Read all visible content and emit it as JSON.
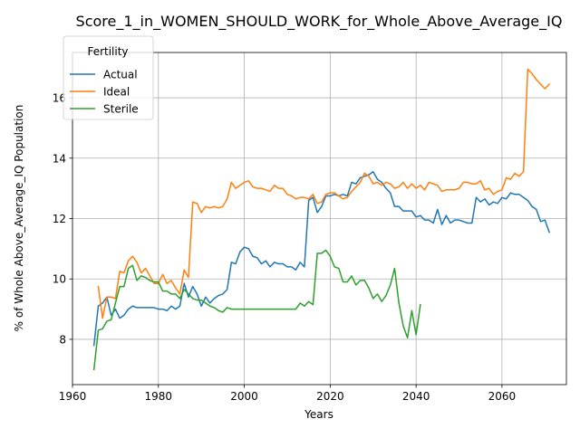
{
  "chart_data": {
    "type": "line",
    "title": "Score_1_in_WOMEN_SHOULD_WORK_for_Whole_Above_Average_IQ",
    "xlabel": "Years",
    "ylabel": "% of Whole Above_Average_IQ Population",
    "xlim": [
      1960,
      2075
    ],
    "ylim": [
      6.5,
      17.5
    ],
    "x_ticks": [
      1960,
      1980,
      2000,
      2020,
      2040,
      2060
    ],
    "y_ticks": [
      8,
      10,
      12,
      14,
      16
    ],
    "grid": true,
    "legend": {
      "title": "Fertility",
      "position": "top-left"
    },
    "series": [
      {
        "name": "Actual",
        "color": "#1f77b4",
        "points": [
          [
            1965,
            7.8
          ],
          [
            1966,
            9.1
          ],
          [
            1967,
            9.2
          ],
          [
            1968,
            9.4
          ],
          [
            1969,
            8.8
          ],
          [
            1970,
            9.0
          ],
          [
            1971,
            8.7
          ],
          [
            1972,
            8.8
          ],
          [
            1973,
            9.0
          ],
          [
            1974,
            9.1
          ],
          [
            1975,
            9.05
          ],
          [
            1976,
            9.05
          ],
          [
            1977,
            9.05
          ],
          [
            1978,
            9.05
          ],
          [
            1979,
            9.05
          ],
          [
            1980,
            9.0
          ],
          [
            1981,
            9.0
          ],
          [
            1982,
            8.95
          ],
          [
            1983,
            9.1
          ],
          [
            1984,
            9.0
          ],
          [
            1985,
            9.1
          ],
          [
            1986,
            9.85
          ],
          [
            1987,
            9.4
          ],
          [
            1988,
            9.75
          ],
          [
            1989,
            9.5
          ],
          [
            1990,
            9.1
          ],
          [
            1991,
            9.4
          ],
          [
            1992,
            9.2
          ],
          [
            1993,
            9.35
          ],
          [
            1994,
            9.45
          ],
          [
            1995,
            9.5
          ],
          [
            1996,
            9.65
          ],
          [
            1997,
            10.55
          ],
          [
            1998,
            10.5
          ],
          [
            1999,
            10.9
          ],
          [
            2000,
            11.05
          ],
          [
            2001,
            11.0
          ],
          [
            2002,
            10.75
          ],
          [
            2003,
            10.7
          ],
          [
            2004,
            10.5
          ],
          [
            2005,
            10.6
          ],
          [
            2006,
            10.4
          ],
          [
            2007,
            10.55
          ],
          [
            2008,
            10.5
          ],
          [
            2009,
            10.5
          ],
          [
            2010,
            10.4
          ],
          [
            2011,
            10.4
          ],
          [
            2012,
            10.3
          ],
          [
            2013,
            10.55
          ],
          [
            2014,
            10.4
          ],
          [
            2015,
            12.6
          ],
          [
            2016,
            12.7
          ],
          [
            2017,
            12.2
          ],
          [
            2018,
            12.4
          ],
          [
            2019,
            12.75
          ],
          [
            2020,
            12.75
          ],
          [
            2021,
            12.8
          ],
          [
            2022,
            12.75
          ],
          [
            2023,
            12.8
          ],
          [
            2024,
            12.75
          ],
          [
            2025,
            13.2
          ],
          [
            2026,
            13.15
          ],
          [
            2027,
            13.35
          ],
          [
            2028,
            13.4
          ],
          [
            2029,
            13.45
          ],
          [
            2030,
            13.55
          ],
          [
            2031,
            13.3
          ],
          [
            2032,
            13.2
          ],
          [
            2033,
            13.0
          ],
          [
            2034,
            12.85
          ],
          [
            2035,
            12.4
          ],
          [
            2036,
            12.4
          ],
          [
            2037,
            12.25
          ],
          [
            2038,
            12.25
          ],
          [
            2039,
            12.25
          ],
          [
            2040,
            12.05
          ],
          [
            2041,
            12.1
          ],
          [
            2042,
            11.95
          ],
          [
            2043,
            11.95
          ],
          [
            2044,
            11.85
          ],
          [
            2045,
            12.3
          ],
          [
            2046,
            11.8
          ],
          [
            2047,
            12.1
          ],
          [
            2048,
            11.85
          ],
          [
            2049,
            11.95
          ],
          [
            2050,
            11.95
          ],
          [
            2051,
            11.9
          ],
          [
            2052,
            11.85
          ],
          [
            2053,
            11.85
          ],
          [
            2054,
            12.7
          ],
          [
            2055,
            12.55
          ],
          [
            2056,
            12.65
          ],
          [
            2057,
            12.45
          ],
          [
            2058,
            12.55
          ],
          [
            2059,
            12.5
          ],
          [
            2060,
            12.7
          ],
          [
            2061,
            12.65
          ],
          [
            2062,
            12.85
          ],
          [
            2063,
            12.8
          ],
          [
            2064,
            12.8
          ],
          [
            2065,
            12.7
          ],
          [
            2066,
            12.6
          ],
          [
            2067,
            12.4
          ],
          [
            2068,
            12.3
          ],
          [
            2069,
            11.9
          ],
          [
            2070,
            11.95
          ],
          [
            2071,
            11.55
          ]
        ]
      },
      {
        "name": "Ideal",
        "color": "#ff7f0e",
        "points": [
          [
            1966,
            9.75
          ],
          [
            1967,
            8.7
          ],
          [
            1968,
            9.4
          ],
          [
            1969,
            9.4
          ],
          [
            1970,
            9.35
          ],
          [
            1971,
            10.25
          ],
          [
            1972,
            10.2
          ],
          [
            1973,
            10.6
          ],
          [
            1974,
            10.75
          ],
          [
            1975,
            10.55
          ],
          [
            1976,
            10.2
          ],
          [
            1977,
            10.35
          ],
          [
            1978,
            10.1
          ],
          [
            1979,
            9.85
          ],
          [
            1980,
            9.85
          ],
          [
            1981,
            10.15
          ],
          [
            1982,
            9.85
          ],
          [
            1983,
            9.95
          ],
          [
            1984,
            9.7
          ],
          [
            1985,
            9.5
          ],
          [
            1986,
            10.3
          ],
          [
            1987,
            10.05
          ],
          [
            1988,
            12.55
          ],
          [
            1989,
            12.5
          ],
          [
            1990,
            12.2
          ],
          [
            1991,
            12.4
          ],
          [
            1992,
            12.35
          ],
          [
            1993,
            12.4
          ],
          [
            1994,
            12.35
          ],
          [
            1995,
            12.4
          ],
          [
            1996,
            12.65
          ],
          [
            1997,
            13.2
          ],
          [
            1998,
            13.0
          ],
          [
            1999,
            13.1
          ],
          [
            2000,
            13.2
          ],
          [
            2001,
            13.25
          ],
          [
            2002,
            13.05
          ],
          [
            2003,
            13.0
          ],
          [
            2004,
            13.0
          ],
          [
            2005,
            12.95
          ],
          [
            2006,
            12.9
          ],
          [
            2007,
            13.1
          ],
          [
            2008,
            13.0
          ],
          [
            2009,
            13.0
          ],
          [
            2010,
            12.8
          ],
          [
            2011,
            12.75
          ],
          [
            2012,
            12.65
          ],
          [
            2013,
            12.7
          ],
          [
            2014,
            12.7
          ],
          [
            2015,
            12.65
          ],
          [
            2016,
            12.8
          ],
          [
            2017,
            12.5
          ],
          [
            2018,
            12.55
          ],
          [
            2019,
            12.8
          ],
          [
            2020,
            12.85
          ],
          [
            2021,
            12.85
          ],
          [
            2022,
            12.75
          ],
          [
            2023,
            12.65
          ],
          [
            2024,
            12.7
          ],
          [
            2025,
            12.9
          ],
          [
            2026,
            13.05
          ],
          [
            2027,
            13.2
          ],
          [
            2028,
            13.5
          ],
          [
            2029,
            13.4
          ],
          [
            2030,
            13.15
          ],
          [
            2031,
            13.2
          ],
          [
            2032,
            13.1
          ],
          [
            2033,
            13.2
          ],
          [
            2034,
            13.15
          ],
          [
            2035,
            13.0
          ],
          [
            2036,
            13.05
          ],
          [
            2037,
            13.2
          ],
          [
            2038,
            13.0
          ],
          [
            2039,
            13.15
          ],
          [
            2040,
            13.0
          ],
          [
            2041,
            13.1
          ],
          [
            2042,
            12.95
          ],
          [
            2043,
            13.2
          ],
          [
            2044,
            13.15
          ],
          [
            2045,
            13.1
          ],
          [
            2046,
            12.9
          ],
          [
            2047,
            12.95
          ],
          [
            2048,
            12.95
          ],
          [
            2049,
            12.95
          ],
          [
            2050,
            13.0
          ],
          [
            2051,
            13.2
          ],
          [
            2052,
            13.2
          ],
          [
            2053,
            13.15
          ],
          [
            2054,
            13.15
          ],
          [
            2055,
            13.25
          ],
          [
            2056,
            12.95
          ],
          [
            2057,
            13.0
          ],
          [
            2058,
            12.8
          ],
          [
            2059,
            12.9
          ],
          [
            2060,
            12.95
          ],
          [
            2061,
            13.35
          ],
          [
            2062,
            13.3
          ],
          [
            2063,
            13.5
          ],
          [
            2064,
            13.4
          ],
          [
            2065,
            13.55
          ],
          [
            2066,
            16.95
          ],
          [
            2067,
            16.8
          ],
          [
            2068,
            16.6
          ],
          [
            2069,
            16.45
          ],
          [
            2070,
            16.3
          ],
          [
            2071,
            16.45
          ]
        ]
      },
      {
        "name": "Sterile",
        "color": "#2ca02c",
        "points": [
          [
            1965,
            7.0
          ],
          [
            1966,
            8.3
          ],
          [
            1967,
            8.35
          ],
          [
            1968,
            8.6
          ],
          [
            1969,
            8.65
          ],
          [
            1970,
            9.2
          ],
          [
            1971,
            9.75
          ],
          [
            1972,
            9.75
          ],
          [
            1973,
            10.35
          ],
          [
            1974,
            10.45
          ],
          [
            1975,
            9.95
          ],
          [
            1976,
            10.1
          ],
          [
            1977,
            10.05
          ],
          [
            1978,
            9.95
          ],
          [
            1979,
            9.9
          ],
          [
            1980,
            9.9
          ],
          [
            1981,
            9.6
          ],
          [
            1982,
            9.6
          ],
          [
            1983,
            9.5
          ],
          [
            1984,
            9.5
          ],
          [
            1985,
            9.35
          ],
          [
            1986,
            9.65
          ],
          [
            1987,
            9.5
          ],
          [
            1988,
            9.35
          ],
          [
            1989,
            9.3
          ],
          [
            1990,
            9.3
          ],
          [
            1991,
            9.2
          ],
          [
            1992,
            9.1
          ],
          [
            1993,
            9.05
          ],
          [
            1994,
            8.95
          ],
          [
            1995,
            8.9
          ],
          [
            1996,
            9.05
          ],
          [
            1997,
            9.0
          ],
          [
            1998,
            9.0
          ],
          [
            1999,
            9.0
          ],
          [
            2000,
            9.0
          ],
          [
            2001,
            9.0
          ],
          [
            2002,
            9.0
          ],
          [
            2003,
            9.0
          ],
          [
            2004,
            9.0
          ],
          [
            2005,
            9.0
          ],
          [
            2006,
            9.0
          ],
          [
            2007,
            9.0
          ],
          [
            2008,
            9.0
          ],
          [
            2009,
            9.0
          ],
          [
            2010,
            9.0
          ],
          [
            2011,
            9.0
          ],
          [
            2012,
            9.0
          ],
          [
            2013,
            9.2
          ],
          [
            2014,
            9.1
          ],
          [
            2015,
            9.25
          ],
          [
            2016,
            9.15
          ],
          [
            2017,
            10.85
          ],
          [
            2018,
            10.85
          ],
          [
            2019,
            10.95
          ],
          [
            2020,
            10.75
          ],
          [
            2021,
            10.4
          ],
          [
            2022,
            10.35
          ],
          [
            2023,
            9.9
          ],
          [
            2024,
            9.9
          ],
          [
            2025,
            10.1
          ],
          [
            2026,
            9.8
          ],
          [
            2027,
            9.95
          ],
          [
            2028,
            9.95
          ],
          [
            2029,
            9.7
          ],
          [
            2030,
            9.35
          ],
          [
            2031,
            9.5
          ],
          [
            2032,
            9.25
          ],
          [
            2033,
            9.45
          ],
          [
            2034,
            9.8
          ],
          [
            2035,
            10.35
          ],
          [
            2036,
            9.2
          ],
          [
            2037,
            8.45
          ],
          [
            2038,
            8.05
          ],
          [
            2039,
            8.95
          ],
          [
            2040,
            8.15
          ],
          [
            2041,
            9.15
          ]
        ]
      }
    ]
  }
}
